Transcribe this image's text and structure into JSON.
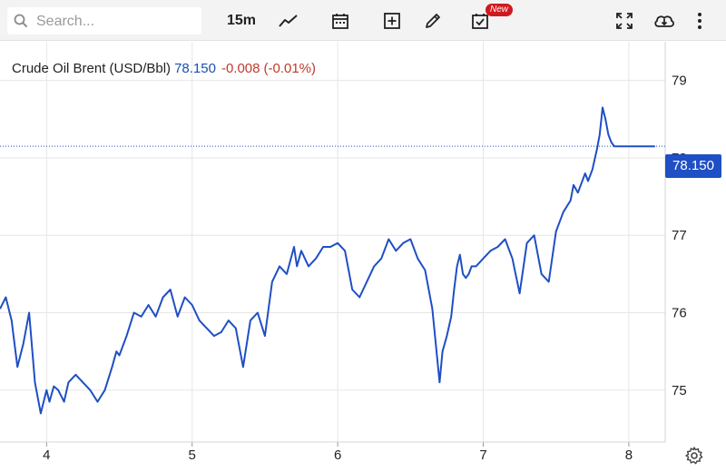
{
  "search": {
    "placeholder": "Search..."
  },
  "toolbar": {
    "interval": "15m",
    "new_badge": "New",
    "icons": [
      "search-icon",
      "line-chart-icon",
      "calendar-icon",
      "add-indicator-icon",
      "draw-pencil-icon",
      "calendar-check-icon",
      "fullscreen-icon",
      "download-cloud-icon",
      "more-vertical-icon"
    ]
  },
  "legend": {
    "symbol": "Crude Oil Brent (USD/Bbl)",
    "price": "78.150",
    "change": "-0.008",
    "change_pct": "(-0.01%)"
  },
  "price_tag": "78.150",
  "colors": {
    "line": "#1f4fc4",
    "accent": "#1f4fc4",
    "negative": "#c0392b",
    "badge": "#d0191f"
  },
  "chart_data": {
    "type": "line",
    "title": "",
    "xlabel": "",
    "ylabel": "",
    "x_ticks": [
      "4",
      "5",
      "6",
      "7",
      "8"
    ],
    "y_ticks": [
      "75",
      "76",
      "77",
      "78",
      "79"
    ],
    "xlim": [
      3.68,
      8.25
    ],
    "ylim": [
      74.33,
      79.5
    ],
    "grid": true,
    "last_value": 78.15,
    "series": [
      {
        "name": "",
        "x": [
          3.68,
          3.72,
          3.76,
          3.8,
          3.84,
          3.88,
          3.92,
          3.96,
          4.0,
          4.02,
          4.05,
          4.08,
          4.12,
          4.15,
          4.2,
          4.25,
          4.3,
          4.35,
          4.4,
          4.45,
          4.48,
          4.5,
          4.55,
          4.6,
          4.65,
          4.7,
          4.75,
          4.8,
          4.85,
          4.9,
          4.95,
          5.0,
          5.05,
          5.1,
          5.15,
          5.2,
          5.25,
          5.3,
          5.35,
          5.4,
          5.45,
          5.5,
          5.55,
          5.6,
          5.65,
          5.7,
          5.72,
          5.75,
          5.8,
          5.85,
          5.9,
          5.95,
          6.0,
          6.05,
          6.1,
          6.15,
          6.2,
          6.25,
          6.3,
          6.35,
          6.4,
          6.45,
          6.5,
          6.55,
          6.6,
          6.65,
          6.7,
          6.72,
          6.75,
          6.78,
          6.8,
          6.82,
          6.84,
          6.86,
          6.88,
          6.9,
          6.92,
          6.95,
          7.0,
          7.05,
          7.1,
          7.15,
          7.2,
          7.25,
          7.3,
          7.35,
          7.4,
          7.45,
          7.5,
          7.55,
          7.6,
          7.62,
          7.65,
          7.68,
          7.7,
          7.72,
          7.75,
          7.78,
          7.8,
          7.82,
          7.84,
          7.86,
          7.88,
          7.9,
          7.92,
          7.95,
          7.98,
          8.0,
          8.02,
          8.04,
          8.06,
          8.08,
          8.1,
          8.12,
          8.15,
          8.18
        ],
        "values": [
          76.05,
          76.2,
          75.9,
          75.3,
          75.6,
          76.0,
          75.1,
          74.7,
          75.0,
          74.85,
          75.05,
          75.0,
          74.85,
          75.1,
          75.2,
          75.1,
          75.0,
          74.85,
          75.0,
          75.3,
          75.5,
          75.45,
          75.7,
          76.0,
          75.95,
          76.1,
          75.95,
          76.2,
          76.3,
          75.95,
          76.2,
          76.1,
          75.9,
          75.8,
          75.7,
          75.75,
          75.9,
          75.8,
          75.3,
          75.9,
          76.0,
          75.7,
          76.4,
          76.6,
          76.5,
          76.85,
          76.6,
          76.8,
          76.6,
          76.7,
          76.85,
          76.85,
          76.9,
          76.8,
          76.3,
          76.2,
          76.4,
          76.6,
          76.7,
          76.95,
          76.8,
          76.9,
          76.95,
          76.7,
          76.55,
          76.05,
          75.1,
          75.5,
          75.7,
          75.95,
          76.3,
          76.6,
          76.75,
          76.5,
          76.45,
          76.5,
          76.6,
          76.6,
          76.7,
          76.8,
          76.85,
          76.95,
          76.7,
          76.25,
          76.9,
          77.0,
          76.5,
          76.4,
          77.05,
          77.3,
          77.45,
          77.65,
          77.55,
          77.7,
          77.8,
          77.7,
          77.85,
          78.1,
          78.3,
          78.65,
          78.5,
          78.3,
          78.2,
          78.15,
          78.15,
          78.15,
          78.15,
          78.15,
          78.15,
          78.15,
          78.15,
          78.15,
          78.15,
          78.15,
          78.15,
          78.15
        ]
      }
    ]
  }
}
